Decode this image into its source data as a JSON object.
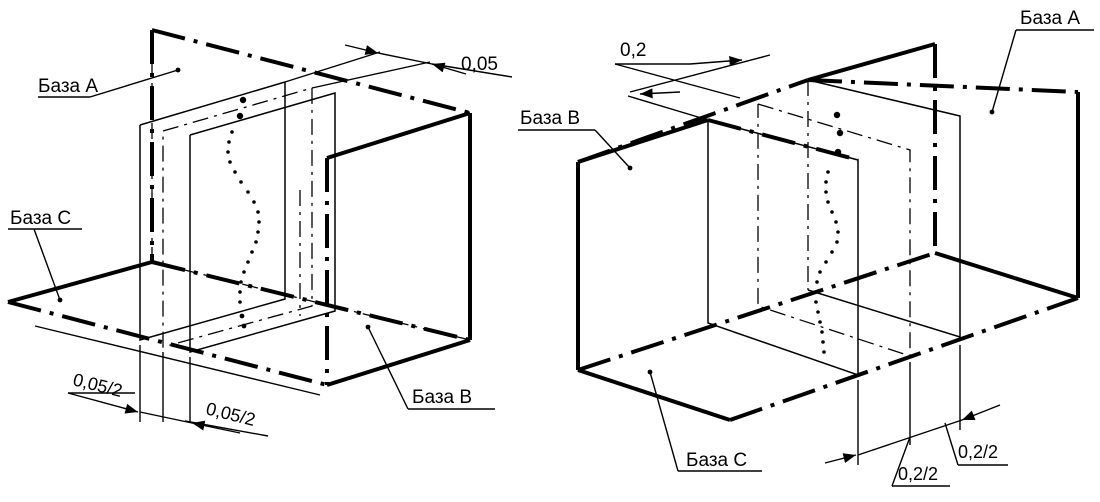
{
  "left": {
    "datum_a": "База А",
    "datum_b": "База В",
    "datum_c": "База С",
    "tol_top": "0,05",
    "tol_half_left": "0,05/2",
    "tol_half_right": "0,05/2"
  },
  "right": {
    "datum_a": "База А",
    "datum_b": "База В",
    "datum_c": "База С",
    "tol_top": "0,2",
    "tol_half_left": "0,2/2",
    "tol_half_right": "0,2/2"
  }
}
